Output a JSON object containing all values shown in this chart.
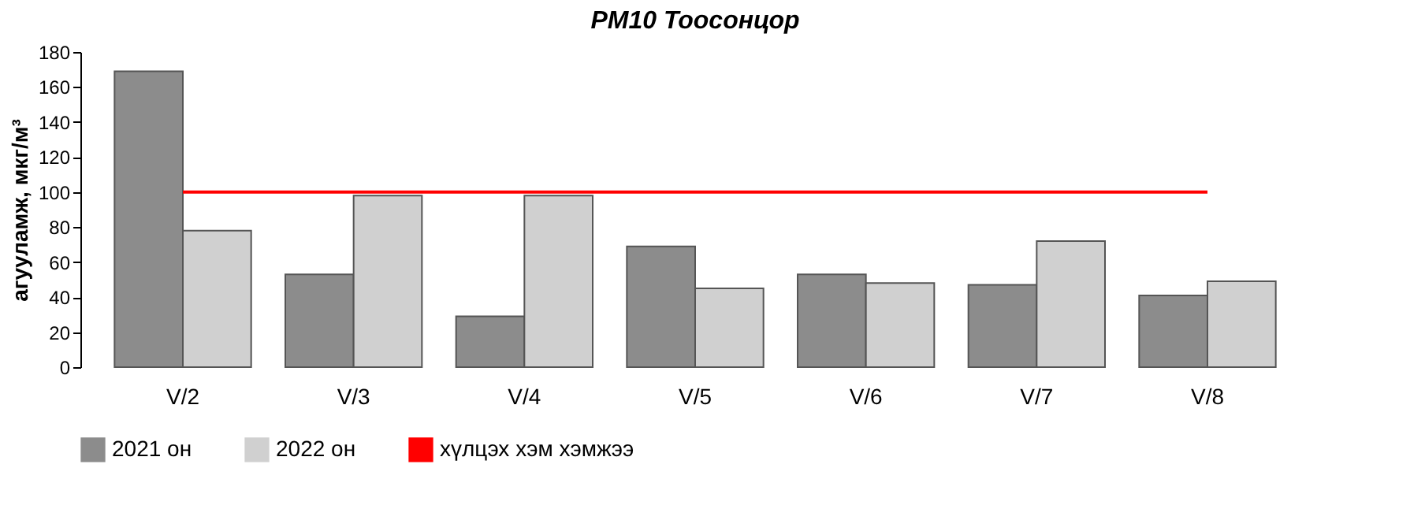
{
  "chart_data": {
    "type": "bar",
    "title": "PM10 Тоосонцор",
    "ylabel": "агууламж, мкг/м³",
    "categories": [
      "V/2",
      "V/3",
      "V/4",
      "V/5",
      "V/6",
      "V/7",
      "V/8"
    ],
    "series": [
      {
        "name": "2021 он",
        "color": "#8c8c8c",
        "values": [
          169,
          53,
          29,
          69,
          53,
          47,
          41
        ]
      },
      {
        "name": "2022 он",
        "color": "#d0d0d0",
        "values": [
          78,
          98,
          98,
          45,
          48,
          72,
          49
        ]
      },
      {
        "name": "хүлцэх хэм хэмжээ",
        "type": "line",
        "color": "#ff0000",
        "values": [
          100,
          100,
          100,
          100,
          100,
          100,
          100
        ]
      }
    ],
    "ylim": [
      0,
      180
    ],
    "yticks": [
      0,
      20,
      40,
      60,
      80,
      100,
      120,
      140,
      160,
      180
    ],
    "grid": false,
    "legend": "bottom"
  }
}
